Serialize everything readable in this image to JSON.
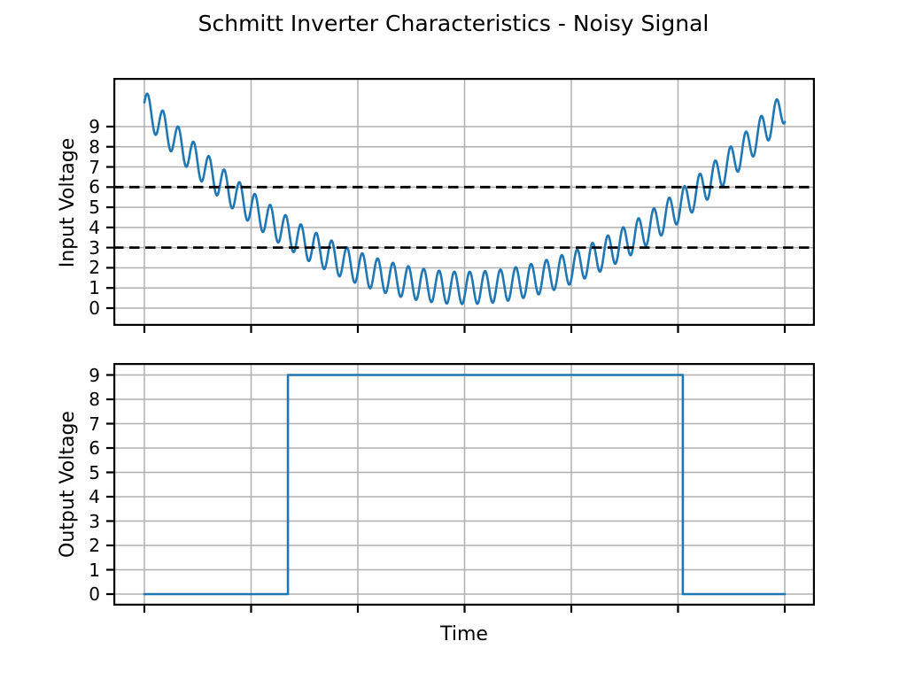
{
  "figure": {
    "title": "Schmitt Inverter Characteristics - Noisy Signal",
    "background_color": "#ffffff",
    "accent_color": "#1f77b4",
    "grid_color": "#b0b0b0",
    "spine_color": "#000000",
    "threshold_color": "#000000"
  },
  "chart_data": [
    {
      "id": "input",
      "type": "line",
      "title": "",
      "xlabel": "",
      "ylabel": "Input Voltage",
      "y_ticks": [
        0,
        1,
        2,
        3,
        4,
        5,
        6,
        7,
        8,
        9
      ],
      "x_ticks": [
        0,
        2,
        4,
        6,
        8,
        10,
        12
      ],
      "x_tick_labels_visible": false,
      "xlim": [
        -0.6,
        12.6
      ],
      "ylim": [
        -0.88,
        11.41
      ],
      "grid": true,
      "legend": "none",
      "series": [
        {
          "name": "noisy-input-signal",
          "color": "#1f77b4",
          "line_width": 2.6,
          "model": {
            "kind": "parabolic_base_plus_sinusoidal_noise",
            "t_range": [
              0,
              12
            ],
            "base_center_v": 1.0,
            "base_edge_v": 10.0,
            "noise_amplitude": 0.8,
            "noise_cycles": 41.75,
            "noise_phase_rad": 0.25
          },
          "base_samples_t": [
            0,
            1,
            2,
            3,
            4,
            5,
            6,
            7,
            8,
            9,
            10,
            11,
            12
          ],
          "base_samples_v": [
            10.0,
            7.25,
            5.0,
            3.25,
            2.0,
            1.25,
            1.0,
            1.25,
            2.0,
            3.25,
            5.0,
            7.25,
            10.0
          ]
        }
      ],
      "thresholds": [
        {
          "name": "upper-threshold",
          "value": 6,
          "style": "dashed",
          "color": "#000000"
        },
        {
          "name": "lower-threshold",
          "value": 3,
          "style": "dashed",
          "color": "#000000"
        }
      ]
    },
    {
      "id": "output",
      "type": "step",
      "title": "",
      "xlabel": "Time",
      "ylabel": "Output Voltage",
      "y_ticks": [
        0,
        1,
        2,
        3,
        4,
        5,
        6,
        7,
        8,
        9
      ],
      "x_ticks": [
        0,
        2,
        4,
        6,
        8,
        10,
        12
      ],
      "x_tick_labels_visible": false,
      "xlim": [
        -0.6,
        12.6
      ],
      "ylim": [
        -0.47,
        9.49
      ],
      "grid": true,
      "legend": "none",
      "series": [
        {
          "name": "inverter-output",
          "color": "#1f77b4",
          "line_width": 2.6,
          "segments": [
            {
              "t_start": 0,
              "t_end": 2.69,
              "value": 0
            },
            {
              "t_start": 2.69,
              "t_end": 10.09,
              "value": 9
            },
            {
              "t_start": 10.09,
              "t_end": 12,
              "value": 0
            }
          ]
        }
      ]
    }
  ]
}
